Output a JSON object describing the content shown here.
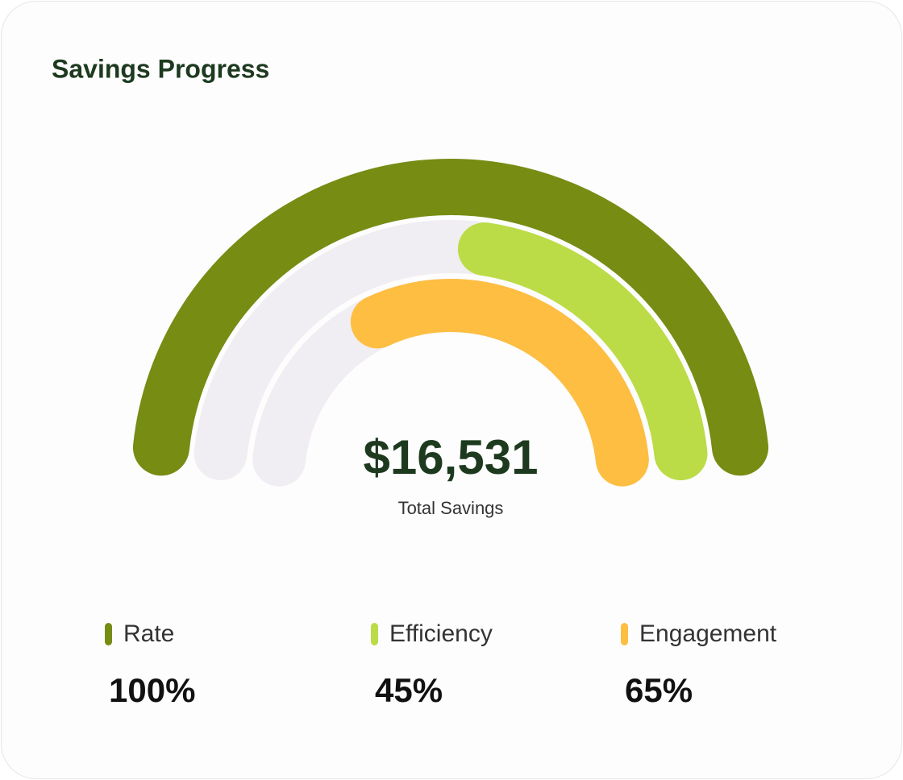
{
  "chart_data": {
    "type": "radial-bar",
    "title": "Savings Progress",
    "center_value": "$16,531",
    "center_label": "Total Savings",
    "categories": [
      "Rate",
      "Efficiency",
      "Engagement"
    ],
    "values": [
      100,
      45,
      65
    ],
    "value_labels": [
      "100%",
      "45%",
      "65%"
    ],
    "colors": [
      "#768c13",
      "#bbdc46",
      "#fdbe42"
    ],
    "track_color": "#f0eef2",
    "ylim": [
      0,
      100
    ]
  }
}
